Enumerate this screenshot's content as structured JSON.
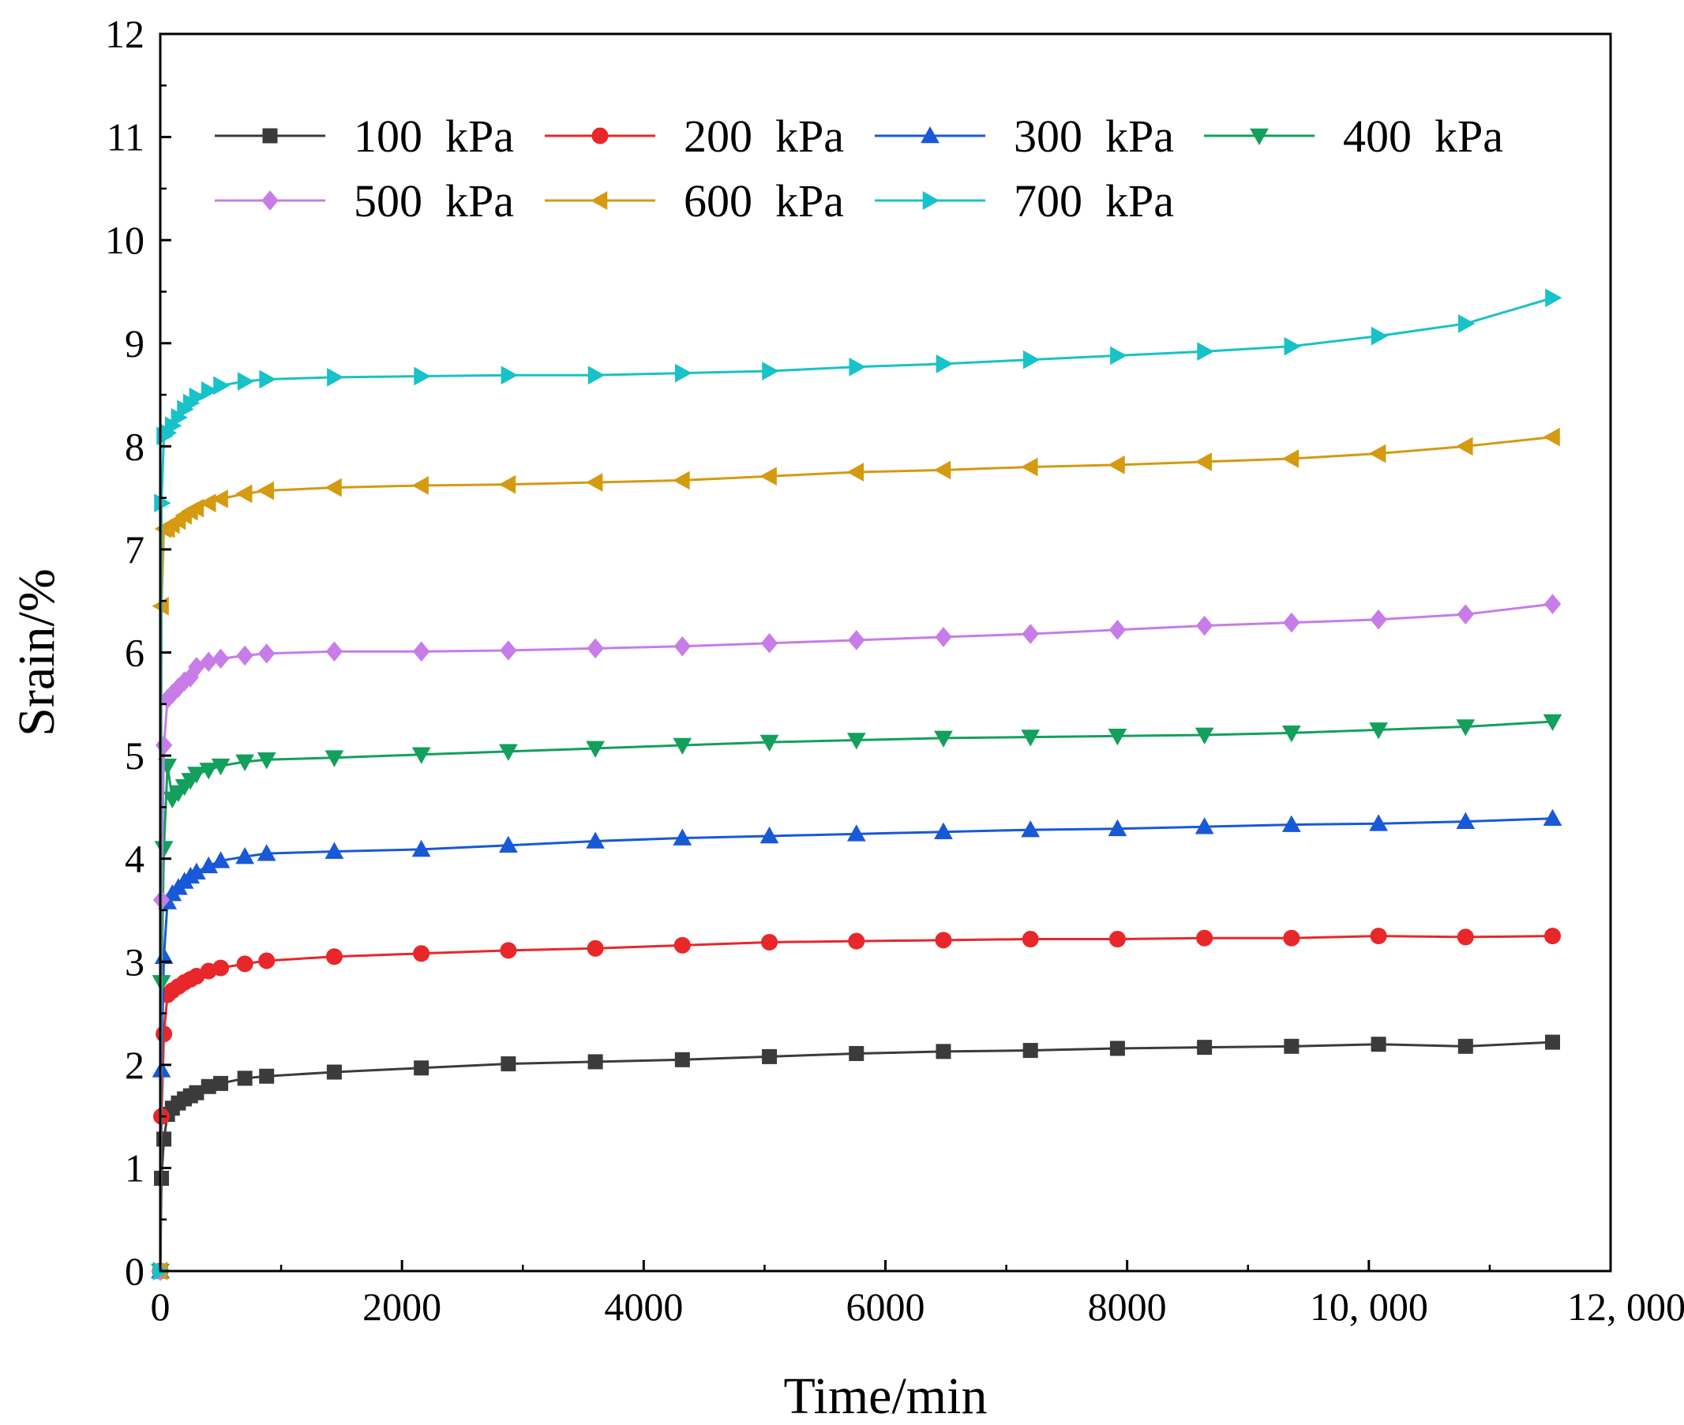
{
  "chart_data": {
    "type": "line",
    "title": "",
    "xlabel": "Time/min",
    "ylabel": "Srain/%",
    "xlim": [
      0,
      12000
    ],
    "ylim": [
      0,
      12
    ],
    "xticks": [
      {
        "value": 0,
        "label": "0"
      },
      {
        "value": 2000,
        "label": "2000"
      },
      {
        "value": 4000,
        "label": "4000"
      },
      {
        "value": 6000,
        "label": "6000"
      },
      {
        "value": 8000,
        "label": "8000"
      },
      {
        "value": 10000,
        "label": "10, 000"
      },
      {
        "value": 12000,
        "label": "12, 000"
      }
    ],
    "yticks": [
      {
        "value": 0,
        "label": "0"
      },
      {
        "value": 1,
        "label": "1"
      },
      {
        "value": 2,
        "label": "2"
      },
      {
        "value": 3,
        "label": "3"
      },
      {
        "value": 4,
        "label": "4"
      },
      {
        "value": 5,
        "label": "5"
      },
      {
        "value": 6,
        "label": "6"
      },
      {
        "value": 7,
        "label": "7"
      },
      {
        "value": 8,
        "label": "8"
      },
      {
        "value": 9,
        "label": "9"
      },
      {
        "value": 10,
        "label": "10"
      },
      {
        "value": 11,
        "label": "11"
      },
      {
        "value": 12,
        "label": "12"
      }
    ],
    "grid": false,
    "legend_position": "top-left",
    "x": [
      0,
      10,
      30,
      60,
      100,
      150,
      200,
      250,
      300,
      400,
      500,
      700,
      880,
      1440,
      2160,
      2880,
      3600,
      4320,
      5040,
      5760,
      6480,
      7200,
      7920,
      8640,
      9360,
      10080,
      10800,
      11520
    ],
    "series": [
      {
        "name": "100  kPa",
        "color": "#3b3b3b",
        "marker": "square",
        "values": [
          0.0,
          0.9,
          1.28,
          1.52,
          1.58,
          1.63,
          1.67,
          1.7,
          1.73,
          1.79,
          1.82,
          1.87,
          1.89,
          1.93,
          1.97,
          2.01,
          2.03,
          2.05,
          2.08,
          2.11,
          2.13,
          2.14,
          2.16,
          2.17,
          2.18,
          2.2,
          2.18,
          2.22
        ]
      },
      {
        "name": "200  kPa",
        "color": "#e8272a",
        "marker": "circle",
        "values": [
          0.0,
          1.5,
          2.3,
          2.68,
          2.72,
          2.76,
          2.8,
          2.83,
          2.86,
          2.91,
          2.94,
          2.98,
          3.01,
          3.05,
          3.08,
          3.11,
          3.13,
          3.16,
          3.19,
          3.2,
          3.21,
          3.22,
          3.22,
          3.23,
          3.23,
          3.25,
          3.24,
          3.25
        ]
      },
      {
        "name": "300  kPa",
        "color": "#1759d6",
        "marker": "triangle-up",
        "values": [
          0.0,
          1.95,
          3.05,
          3.58,
          3.66,
          3.72,
          3.78,
          3.83,
          3.87,
          3.93,
          3.98,
          4.02,
          4.05,
          4.07,
          4.09,
          4.13,
          4.17,
          4.2,
          4.22,
          4.24,
          4.26,
          4.28,
          4.29,
          4.31,
          4.33,
          4.34,
          4.36,
          4.39
        ]
      },
      {
        "name": "400  kPa",
        "color": "#12a05c",
        "marker": "triangle-down",
        "values": [
          0.0,
          2.8,
          4.1,
          4.9,
          4.58,
          4.64,
          4.7,
          4.76,
          4.82,
          4.86,
          4.9,
          4.94,
          4.96,
          4.98,
          5.01,
          5.04,
          5.07,
          5.1,
          5.13,
          5.15,
          5.17,
          5.18,
          5.19,
          5.2,
          5.22,
          5.25,
          5.28,
          5.33
        ]
      },
      {
        "name": "500  kPa",
        "color": "#c77ce8",
        "marker": "diamond",
        "values": [
          0.0,
          3.6,
          5.1,
          5.55,
          5.6,
          5.66,
          5.72,
          5.76,
          5.86,
          5.91,
          5.94,
          5.97,
          5.99,
          6.01,
          6.01,
          6.02,
          6.04,
          6.06,
          6.09,
          6.12,
          6.15,
          6.18,
          6.22,
          6.26,
          6.29,
          6.32,
          6.37,
          6.47
        ]
      },
      {
        "name": "600  kPa",
        "color": "#d49a10",
        "marker": "triangle-left",
        "values": [
          0.0,
          6.45,
          7.2,
          7.2,
          7.24,
          7.28,
          7.33,
          7.37,
          7.4,
          7.45,
          7.49,
          7.54,
          7.57,
          7.6,
          7.62,
          7.63,
          7.65,
          7.67,
          7.71,
          7.75,
          7.77,
          7.8,
          7.82,
          7.85,
          7.88,
          7.93,
          8.0,
          8.09
        ]
      },
      {
        "name": "700  kPa",
        "color": "#17c2c9",
        "marker": "triangle-right",
        "values": [
          0.0,
          7.45,
          8.1,
          8.13,
          8.2,
          8.28,
          8.36,
          8.42,
          8.48,
          8.54,
          8.59,
          8.63,
          8.65,
          8.67,
          8.68,
          8.69,
          8.69,
          8.71,
          8.73,
          8.77,
          8.8,
          8.84,
          8.88,
          8.92,
          8.97,
          9.07,
          9.19,
          9.44
        ]
      }
    ]
  }
}
